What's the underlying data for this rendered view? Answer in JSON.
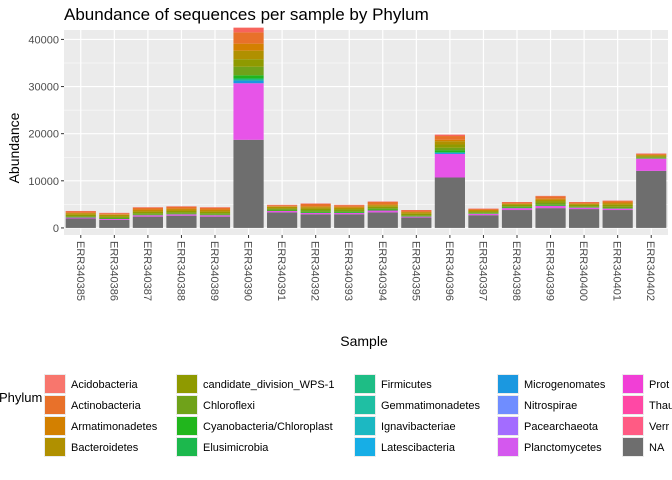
{
  "chart_data": {
    "type": "bar",
    "stacked": true,
    "title": "Abundance of sequences per sample by Phylum",
    "xlabel": "Sample",
    "ylabel": "Abundance",
    "ylim": [
      -1500,
      42000
    ],
    "yticks": [
      0,
      10000,
      20000,
      30000,
      40000
    ],
    "grid": true,
    "legend_position": "bottom",
    "legend_title": "Phylum",
    "categories": [
      "ERR340385",
      "ERR340386",
      "ERR340387",
      "ERR340388",
      "ERR340389",
      "ERR340390",
      "ERR340391",
      "ERR340392",
      "ERR340393",
      "ERR340394",
      "ERR340395",
      "ERR340396",
      "ERR340397",
      "ERR340398",
      "ERR340399",
      "ERR340400",
      "ERR340401",
      "ERR340402"
    ],
    "series": [
      {
        "name": "NA",
        "color": "#6e6e6e",
        "values": [
          2000,
          1700,
          2400,
          2600,
          2400,
          18700,
          3300,
          2900,
          2900,
          3300,
          2200,
          10700,
          2700,
          3800,
          4200,
          4000,
          3800,
          12100
        ]
      },
      {
        "name": "Planctomycetes",
        "color": "#e754e8",
        "values": [
          200,
          200,
          300,
          300,
          300,
          12000,
          300,
          300,
          300,
          400,
          200,
          5000,
          300,
          400,
          500,
          300,
          300,
          2600
        ]
      },
      {
        "name": "Microgenomates",
        "color": "#1b98e0",
        "values": [
          0,
          0,
          0,
          0,
          0,
          600,
          0,
          0,
          0,
          0,
          0,
          200,
          0,
          0,
          0,
          0,
          0,
          0
        ]
      },
      {
        "name": "Firmicutes",
        "color": "#1ebd85",
        "values": [
          0,
          0,
          0,
          0,
          0,
          400,
          0,
          0,
          0,
          0,
          0,
          200,
          0,
          0,
          0,
          0,
          0,
          0
        ]
      },
      {
        "name": "Cyanobacteria/Chloroplast",
        "color": "#21b61d",
        "values": [
          100,
          100,
          100,
          100,
          100,
          700,
          100,
          200,
          200,
          200,
          100,
          400,
          100,
          200,
          200,
          100,
          100,
          100
        ]
      },
      {
        "name": "Chloroflexi",
        "color": "#6fa21a",
        "values": [
          200,
          200,
          300,
          300,
          300,
          1800,
          300,
          400,
          300,
          300,
          200,
          500,
          200,
          200,
          400,
          200,
          300,
          200
        ]
      },
      {
        "name": "candidate_division_WPS-1",
        "color": "#8f9a00",
        "values": [
          300,
          300,
          300,
          300,
          300,
          1600,
          200,
          300,
          300,
          300,
          300,
          700,
          200,
          300,
          400,
          300,
          400,
          200
        ]
      },
      {
        "name": "Bacteroidetes",
        "color": "#b09000",
        "values": [
          300,
          300,
          300,
          300,
          300,
          1800,
          300,
          300,
          300,
          300,
          300,
          700,
          200,
          200,
          300,
          200,
          300,
          200
        ]
      },
      {
        "name": "Armatimonadetes",
        "color": "#d38000",
        "values": [
          100,
          100,
          200,
          200,
          200,
          1500,
          100,
          200,
          200,
          200,
          100,
          300,
          100,
          100,
          200,
          100,
          200,
          100
        ]
      },
      {
        "name": "Actinobacteria",
        "color": "#e8712a",
        "values": [
          300,
          200,
          400,
          400,
          400,
          2400,
          200,
          500,
          300,
          500,
          300,
          800,
          200,
          200,
          500,
          200,
          300,
          200
        ]
      },
      {
        "name": "Acidobacteria",
        "color": "#f7645c",
        "values": [
          100,
          100,
          100,
          100,
          100,
          1000,
          100,
          100,
          100,
          100,
          100,
          300,
          100,
          100,
          100,
          100,
          100,
          100
        ]
      }
    ],
    "legend_entries": [
      {
        "name": "Acidobacteria",
        "color": "#f8766d"
      },
      {
        "name": "Actinobacteria",
        "color": "#e8712a"
      },
      {
        "name": "Armatimonadetes",
        "color": "#d38000"
      },
      {
        "name": "Bacteroidetes",
        "color": "#b09000"
      },
      {
        "name": "candidate_division_WPS-1",
        "color": "#8f9a00"
      },
      {
        "name": "Chloroflexi",
        "color": "#6fa21a"
      },
      {
        "name": "Cyanobacteria/Chloroplast",
        "color": "#21b61d"
      },
      {
        "name": "Elusimicrobia",
        "color": "#1cb84d"
      },
      {
        "name": "Firmicutes",
        "color": "#1ebd85"
      },
      {
        "name": "Gemmatimonadetes",
        "color": "#1fbfa3"
      },
      {
        "name": "Ignavibacteriae",
        "color": "#1cb8c2"
      },
      {
        "name": "Latescibacteria",
        "color": "#17aee6"
      },
      {
        "name": "Microgenomates",
        "color": "#1b98e0"
      },
      {
        "name": "Nitrospirae",
        "color": "#6f8dff"
      },
      {
        "name": "Pacearchaeota",
        "color": "#a36cff"
      },
      {
        "name": "Planctomycetes",
        "color": "#d458ee"
      },
      {
        "name": "Prot",
        "color": "#f13fd6"
      },
      {
        "name": "Thau",
        "color": "#ff48a5"
      },
      {
        "name": "Verr",
        "color": "#ff5b84"
      },
      {
        "name": "NA",
        "color": "#6e6e6e"
      }
    ]
  }
}
